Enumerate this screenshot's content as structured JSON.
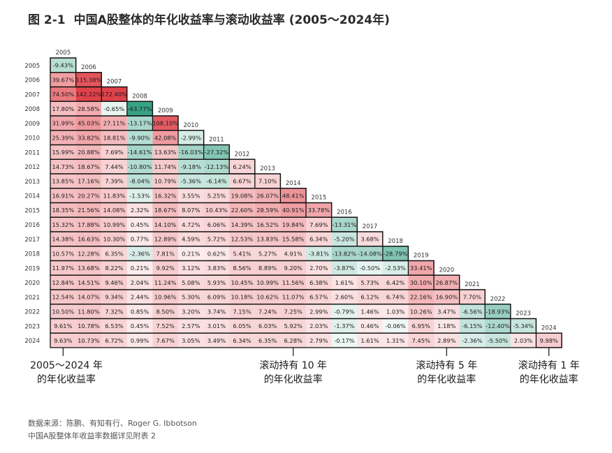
{
  "title": {
    "figure_no": "图 2-1",
    "text": "中国A股整体的年化收益率与滚动收益率 (2005～2024年)"
  },
  "chart_data": {
    "type": "heatmap",
    "layout": "lower-triangular",
    "years": [
      "2005",
      "2006",
      "2007",
      "2008",
      "2009",
      "2010",
      "2011",
      "2012",
      "2013",
      "2014",
      "2015",
      "2016",
      "2017",
      "2018",
      "2019",
      "2020",
      "2021",
      "2022",
      "2023",
      "2024"
    ],
    "rows": [
      [
        "-9.43%"
      ],
      [
        "39.67%",
        "115.38%"
      ],
      [
        "74.50%",
        "142.22%",
        "172.40%"
      ],
      [
        "17.80%",
        "28.58%",
        "-0.65%",
        "-63.77%"
      ],
      [
        "31.99%",
        "45.03%",
        "27.11%",
        "-13.17%",
        "108.10%"
      ],
      [
        "25.39%",
        "33.82%",
        "18.81%",
        "-9.90%",
        "42.08%",
        "-2.99%"
      ],
      [
        "15.99%",
        "20.88%",
        "7.69%",
        "-14.61%",
        "13.63%",
        "-16.03%",
        "-27.32%"
      ],
      [
        "14.73%",
        "18.67%",
        "7.44%",
        "-10.80%",
        "11.74%",
        "-9.18%",
        "-12.13%",
        "6.24%"
      ],
      [
        "13.85%",
        "17.16%",
        "7.39%",
        "-8.04%",
        "10.79%",
        "-5.36%",
        "-6.14%",
        "6.67%",
        "7.10%"
      ],
      [
        "16.91%",
        "20.27%",
        "11.83%",
        "-1.53%",
        "16.32%",
        "3.55%",
        "5.25%",
        "19.08%",
        "26.07%",
        "48.41%"
      ],
      [
        "18.35%",
        "21.56%",
        "14.08%",
        "2.32%",
        "18.67%",
        "8.07%",
        "10.43%",
        "22.60%",
        "28.59%",
        "40.91%",
        "33.78%"
      ],
      [
        "15.32%",
        "17.88%",
        "10.99%",
        "0.45%",
        "14.10%",
        "4.72%",
        "6.06%",
        "14.39%",
        "16.52%",
        "19.84%",
        "7.69%",
        "-13.31%"
      ],
      [
        "14.38%",
        "16.63%",
        "10.30%",
        "0.77%",
        "12.89%",
        "4.59%",
        "5.72%",
        "12.53%",
        "13.83%",
        "15.58%",
        "6.34%",
        "-5.20%",
        "3.68%"
      ],
      [
        "10.57%",
        "12.28%",
        "6.35%",
        "-2.36%",
        "7.81%",
        "0.21%",
        "0.62%",
        "5.41%",
        "5.27%",
        "4.91%",
        "-3.81%",
        "-13.82%",
        "-14.08%",
        "-28.79%"
      ],
      [
        "11.97%",
        "13.68%",
        "8.22%",
        "0.21%",
        "9.92%",
        "3.12%",
        "3.83%",
        "8.56%",
        "8.89%",
        "9.20%",
        "2.70%",
        "-3.87%",
        "-0.50%",
        "-2.53%",
        "33.41%"
      ],
      [
        "12.84%",
        "14.51%",
        "9.46%",
        "2.04%",
        "11.24%",
        "5.08%",
        "5.93%",
        "10.45%",
        "10.99%",
        "11.56%",
        "6.38%",
        "1.61%",
        "5.73%",
        "6.42%",
        "30.10%",
        "26.87%"
      ],
      [
        "12.54%",
        "14.07%",
        "9.34%",
        "2.44%",
        "10.96%",
        "5.30%",
        "6.09%",
        "10.18%",
        "10.62%",
        "11.07%",
        "6.57%",
        "2.60%",
        "6.12%",
        "6.74%",
        "22.16%",
        "16.90%",
        "7.70%"
      ],
      [
        "10.50%",
        "11.80%",
        "7.32%",
        "0.85%",
        "8.50%",
        "3.20%",
        "3.74%",
        "7.15%",
        "7.24%",
        "7.25%",
        "2.99%",
        "-0.79%",
        "1.46%",
        "1.03%",
        "10.26%",
        "3.47%",
        "-6.56%",
        "-18.93%"
      ],
      [
        "9.61%",
        "10.78%",
        "6.53%",
        "0.45%",
        "7.52%",
        "2.57%",
        "3.01%",
        "6.05%",
        "6.03%",
        "5.92%",
        "2.03%",
        "-1.37%",
        "0.46%",
        "-0.06%",
        "6.95%",
        "1.18%",
        "-6.15%",
        "-12.40%",
        "-5.34%"
      ],
      [
        "9.63%",
        "10.73%",
        "6.72%",
        "0.99%",
        "7.67%",
        "3.05%",
        "3.49%",
        "6.34%",
        "6.35%",
        "6.28%",
        "2.79%",
        "-0.17%",
        "1.61%",
        "1.31%",
        "7.45%",
        "2.89%",
        "-2.36%",
        "-5.50%",
        "2.03%",
        "9.98%"
      ]
    ],
    "colors": {
      "positive": "#e0424a",
      "negative": "#2f9e80",
      "neutral": "#ffffff",
      "outline": "#111111"
    }
  },
  "annotations": [
    {
      "line1": "2005～2024 年",
      "line2": "的年化收益率"
    },
    {
      "line1": "滚动持有 10 年",
      "line2": "的年化收益率"
    },
    {
      "line1": "滚动持有 5 年",
      "line2": "的年化收益率"
    },
    {
      "line1": "滚动持有 1 年",
      "line2": "的年化收益率"
    }
  ],
  "source": {
    "line1": "数据来源：陈鹏、有知有行、Roger G. Ibbotson",
    "line2": "中国A股整体年收益率数据详见附表 2"
  }
}
